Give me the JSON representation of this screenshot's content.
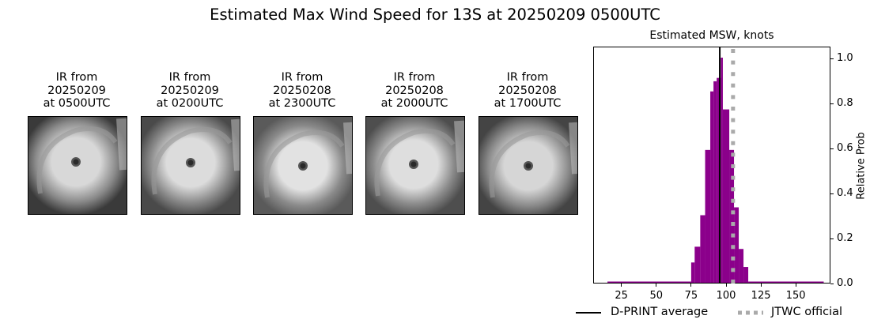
{
  "figure": {
    "title": "Estimated Max Wind Speed for 13S at 20250209 0500UTC"
  },
  "ir_panels": [
    {
      "line1": "IR from",
      "line2": "20250209",
      "line3": "at 0500UTC"
    },
    {
      "line1": "IR from",
      "line2": "20250209",
      "line3": "at 0200UTC"
    },
    {
      "line1": "IR from",
      "line2": "20250208",
      "line3": "at 2300UTC"
    },
    {
      "line1": "IR from",
      "line2": "20250208",
      "line3": "at 2000UTC"
    },
    {
      "line1": "IR from",
      "line2": "20250208",
      "line3": "at 1700UTC"
    }
  ],
  "colors": {
    "histogram": "#8b008b",
    "dprint_line": "#000000",
    "jtwc_line": "#aaaaaa"
  },
  "chart_data": {
    "type": "bar",
    "title": "Estimated MSW, knots",
    "xlabel": "",
    "ylabel": "Relative Prob",
    "xlim": [
      5,
      175
    ],
    "ylim": [
      0,
      1.05
    ],
    "xticks": [
      25,
      50,
      75,
      100,
      125,
      150
    ],
    "yticks": [
      0.0,
      0.2,
      0.4,
      0.6,
      0.8,
      1.0
    ],
    "ytick_labels": [
      "0.0",
      "0.2",
      "0.4",
      "0.6",
      "0.8",
      "1.0"
    ],
    "y_axis_side": "right",
    "bins": [
      {
        "left": 15,
        "right": 75,
        "value": 0.003
      },
      {
        "left": 75,
        "right": 77.5,
        "value": 0.09
      },
      {
        "left": 77.5,
        "right": 81.5,
        "value": 0.16
      },
      {
        "left": 81.5,
        "right": 85,
        "value": 0.3
      },
      {
        "left": 85,
        "right": 88.7,
        "value": 0.59
      },
      {
        "left": 88.7,
        "right": 91,
        "value": 0.85
      },
      {
        "left": 91,
        "right": 93.3,
        "value": 0.895
      },
      {
        "left": 93.3,
        "right": 96.2,
        "value": 0.91
      },
      {
        "left": 96.2,
        "right": 97.7,
        "value": 1.0
      },
      {
        "left": 97.7,
        "right": 102.3,
        "value": 0.77
      },
      {
        "left": 102.3,
        "right": 105.7,
        "value": 0.59
      },
      {
        "left": 105.7,
        "right": 109.1,
        "value": 0.335
      },
      {
        "left": 109.1,
        "right": 112.5,
        "value": 0.15
      },
      {
        "left": 112.5,
        "right": 115.9,
        "value": 0.07
      },
      {
        "left": 115.9,
        "right": 170,
        "value": 0.003
      }
    ],
    "vlines": [
      {
        "name": "D-PRINT average",
        "x": 95.5,
        "style": "solid",
        "color": "#000000"
      },
      {
        "name": "JTWC official",
        "x": 105,
        "style": "dotted",
        "color": "#aaaaaa"
      }
    ],
    "legend": {
      "position": "below",
      "entries": [
        "D-PRINT average",
        "JTWC official"
      ]
    },
    "grid": false
  }
}
